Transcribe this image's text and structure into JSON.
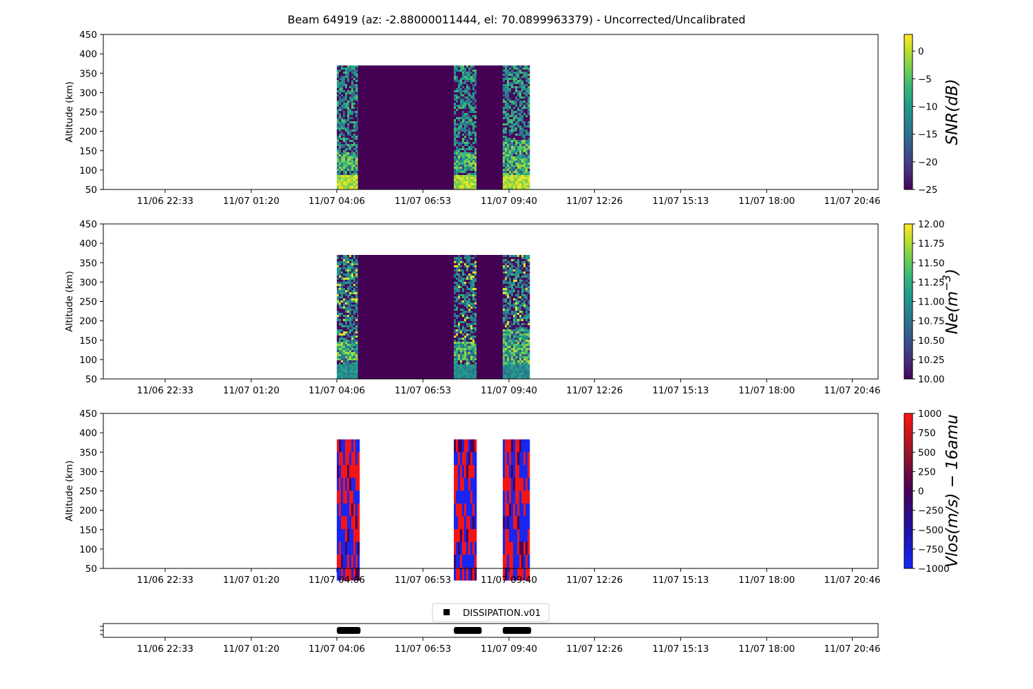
{
  "figure": {
    "title": "Beam 64919 (az: -2.88000011444, el: 70.0899963379) - Uncorrected/Uncalibrated"
  },
  "x_ticks": [
    "11/06 22:33",
    "11/07 01:20",
    "11/07 04:06",
    "11/07 06:53",
    "11/07 09:40",
    "11/07 12:26",
    "11/07 15:13",
    "11/07 18:00",
    "11/07 20:46"
  ],
  "chart_data": [
    {
      "type": "heatmap",
      "name": "snr",
      "ylabel": "Altitude (km)",
      "ylim": [
        50,
        450
      ],
      "yticks": [
        50,
        100,
        150,
        200,
        250,
        300,
        350,
        400,
        450
      ],
      "x_range": [
        "11/06 20:33",
        "11/07 21:36"
      ],
      "colorbar": {
        "label": "SNR(dB)",
        "cmap": "viridis",
        "range": [
          -25,
          3
        ],
        "ticks": [
          "0",
          "−5",
          "−10",
          "−15",
          "−20",
          "−25"
        ],
        "tick_values": [
          0,
          -5,
          -10,
          -15,
          -20,
          -25
        ]
      },
      "data_top_km": 370,
      "blocks": [
        {
          "start": "11/07 04:06",
          "end": "11/07 04:47",
          "pattern": "noisy",
          "low_band_top_km": 90,
          "bright_region_km": [
            100,
            150
          ]
        },
        {
          "start": "11/07 04:47",
          "end": "11/07 07:53",
          "pattern": "fill_min"
        },
        {
          "start": "11/07 07:53",
          "end": "11/07 08:37",
          "pattern": "noisy",
          "low_band_top_km": 90,
          "bright_region_km": [
            100,
            150
          ]
        },
        {
          "start": "11/07 08:37",
          "end": "11/07 09:28",
          "pattern": "fill_min"
        },
        {
          "start": "11/07 09:28",
          "end": "11/07 10:20",
          "pattern": "noisy",
          "low_band_top_km": 90,
          "bright_region_km": [
            90,
            180
          ]
        }
      ]
    },
    {
      "type": "heatmap",
      "name": "ne",
      "ylabel": "Altitude (km)",
      "ylim": [
        50,
        450
      ],
      "yticks": [
        50,
        100,
        150,
        200,
        250,
        300,
        350,
        400,
        450
      ],
      "x_range": [
        "11/06 20:33",
        "11/07 21:36"
      ],
      "colorbar": {
        "label": "Ne(m",
        "label_exp": "−3",
        "label_close": ")",
        "cmap": "viridis",
        "range": [
          10.0,
          12.0
        ],
        "ticks": [
          "12.00",
          "11.75",
          "11.50",
          "11.25",
          "11.00",
          "10.75",
          "10.50",
          "10.25",
          "10.00"
        ],
        "tick_values": [
          12.0,
          11.75,
          11.5,
          11.25,
          11.0,
          10.75,
          10.5,
          10.25,
          10.0
        ]
      },
      "data_top_km": 370,
      "blocks": [
        {
          "start": "11/07 04:06",
          "end": "11/07 04:47",
          "pattern": "noisy",
          "low_band_top_km": 90,
          "bright_region_km": [
            100,
            150
          ]
        },
        {
          "start": "11/07 04:47",
          "end": "11/07 07:53",
          "pattern": "fill_min"
        },
        {
          "start": "11/07 07:53",
          "end": "11/07 08:37",
          "pattern": "noisy",
          "low_band_top_km": 90,
          "bright_region_km": [
            100,
            150
          ]
        },
        {
          "start": "11/07 08:37",
          "end": "11/07 09:28",
          "pattern": "fill_min"
        },
        {
          "start": "11/07 09:28",
          "end": "11/07 10:20",
          "pattern": "noisy",
          "low_band_top_km": 90,
          "bright_region_km": [
            90,
            180
          ]
        }
      ]
    },
    {
      "type": "heatmap",
      "name": "vlos",
      "ylabel": "Altitude (km)",
      "ylim": [
        50,
        450
      ],
      "yticks": [
        50,
        100,
        150,
        200,
        250,
        300,
        350,
        400,
        450
      ],
      "x_range": [
        "11/06 20:33",
        "11/07 21:36"
      ],
      "colorbar": {
        "label": "Vlos(m/s) − 16amu",
        "cmap": "bwr_dark",
        "range": [
          -1000,
          1000
        ],
        "ticks": [
          "1000",
          "750",
          "500",
          "250",
          "0",
          "−250",
          "−500",
          "−750",
          "−1000"
        ],
        "tick_values": [
          1000,
          750,
          500,
          250,
          0,
          -250,
          -500,
          -750,
          -1000
        ]
      },
      "data_top_km": 383,
      "blocks": [
        {
          "start": "11/07 04:06",
          "end": "11/07 04:47",
          "pattern": "velocity"
        },
        {
          "start": "11/07 07:53",
          "end": "11/07 08:37",
          "pattern": "velocity"
        },
        {
          "start": "11/07 09:28",
          "end": "11/07 10:20",
          "pattern": "velocity"
        }
      ]
    },
    {
      "type": "scatter",
      "name": "dissipation",
      "x_range": [
        "11/06 20:33",
        "11/07 21:36"
      ],
      "legend": {
        "label": "DISSIPATION.v01",
        "placement": "top-center",
        "marker": "square",
        "color": "#000000"
      },
      "segments": [
        {
          "start": "11/07 04:06",
          "end": "11/07 04:52"
        },
        {
          "start": "11/07 07:53",
          "end": "11/07 08:47"
        },
        {
          "start": "11/07 09:28",
          "end": "11/07 10:23"
        }
      ]
    }
  ]
}
